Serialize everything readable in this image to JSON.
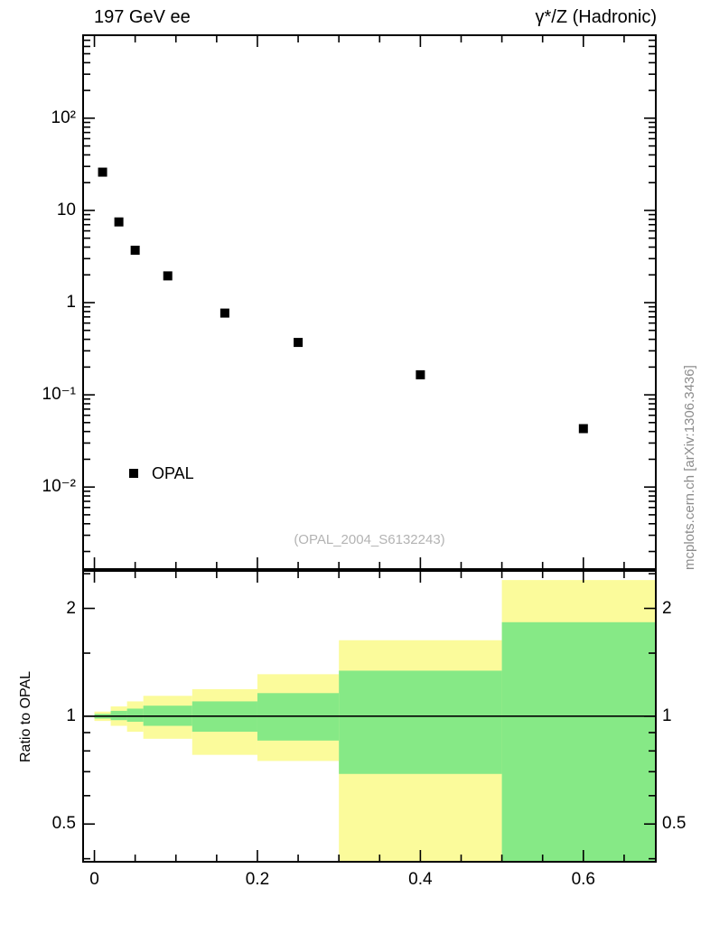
{
  "figure": {
    "watermark": "(OPAL_2004_S6132243)",
    "side_label": "mcplots.cern.ch [arXiv:1306.3436]",
    "colors": {
      "band_outer": "#fbfb9b",
      "band_inner": "#86e986",
      "marker": "#000000",
      "frame": "#000000",
      "watermark_text": "#b3b3b3",
      "side_text": "#8c8c8c"
    }
  },
  "chart_data": [
    {
      "type": "scatter",
      "name": "main-panel",
      "title_left": "197 GeV ee",
      "title_right": "γ*/Z (Hadronic)",
      "series_label": "OPAL",
      "marker": "filled-square",
      "yscale": "log",
      "xscale": "linear",
      "xlim": [
        -0.015,
        0.69
      ],
      "ylim": [
        0.00126,
        812
      ],
      "x": [
        0.01,
        0.03,
        0.05,
        0.09,
        0.16,
        0.25,
        0.4,
        0.6
      ],
      "y": [
        26,
        7.5,
        3.7,
        1.95,
        0.77,
        0.37,
        0.165,
        0.043
      ],
      "y_ticks": [
        {
          "v": 100,
          "label": "10²"
        },
        {
          "v": 10,
          "label": "10"
        },
        {
          "v": 1,
          "label": "1"
        },
        {
          "v": 0.1,
          "label": "10⁻¹"
        },
        {
          "v": 0.01,
          "label": "10⁻²"
        }
      ],
      "x_ticks": [
        {
          "v": 0,
          "label": "0"
        },
        {
          "v": 0.2,
          "label": "0.2"
        },
        {
          "v": 0.4,
          "label": "0.4"
        },
        {
          "v": 0.6,
          "label": "0.6"
        }
      ],
      "x_minor_step": 0.05,
      "grid": false
    },
    {
      "type": "ratio-bands",
      "name": "ratio-panel",
      "ylabel": "Ratio to OPAL",
      "yscale": "log",
      "xlim": [
        -0.015,
        0.69
      ],
      "ylim": [
        0.39,
        2.56
      ],
      "reference_line": 1.0,
      "y_ticks": [
        {
          "v": 0.5,
          "label": "0.5"
        },
        {
          "v": 1,
          "label": "1"
        },
        {
          "v": 2,
          "label": "2"
        }
      ],
      "y_minor": [
        0.4,
        0.6,
        0.7,
        0.8,
        0.9,
        1.5,
        2.5
      ],
      "x_ticks": [
        {
          "v": 0,
          "label": "0"
        },
        {
          "v": 0.2,
          "label": "0.2"
        },
        {
          "v": 0.4,
          "label": "0.4"
        },
        {
          "v": 0.6,
          "label": "0.6"
        }
      ],
      "x_minor_step": 0.05,
      "bands": [
        {
          "x0": 0.0,
          "x1": 0.02,
          "outer_lo": 0.97,
          "outer_hi": 1.03,
          "inner_lo": 0.985,
          "inner_hi": 1.015
        },
        {
          "x0": 0.02,
          "x1": 0.04,
          "outer_lo": 0.94,
          "outer_hi": 1.065,
          "inner_lo": 0.975,
          "inner_hi": 1.035
        },
        {
          "x0": 0.04,
          "x1": 0.06,
          "outer_lo": 0.905,
          "outer_hi": 1.1,
          "inner_lo": 0.965,
          "inner_hi": 1.05
        },
        {
          "x0": 0.06,
          "x1": 0.12,
          "outer_lo": 0.865,
          "outer_hi": 1.14,
          "inner_lo": 0.94,
          "inner_hi": 1.07
        },
        {
          "x0": 0.12,
          "x1": 0.2,
          "outer_lo": 0.78,
          "outer_hi": 1.19,
          "inner_lo": 0.905,
          "inner_hi": 1.1
        },
        {
          "x0": 0.2,
          "x1": 0.3,
          "outer_lo": 0.75,
          "outer_hi": 1.31,
          "inner_lo": 0.855,
          "inner_hi": 1.16
        },
        {
          "x0": 0.3,
          "x1": 0.5,
          "outer_lo": 0.3,
          "outer_hi": 1.63,
          "inner_lo": 0.69,
          "inner_hi": 1.34
        },
        {
          "x0": 0.5,
          "x1": 0.7,
          "outer_lo": 0.3,
          "outer_hi": 2.4,
          "inner_lo": 0.3,
          "inner_hi": 1.83
        }
      ]
    }
  ]
}
